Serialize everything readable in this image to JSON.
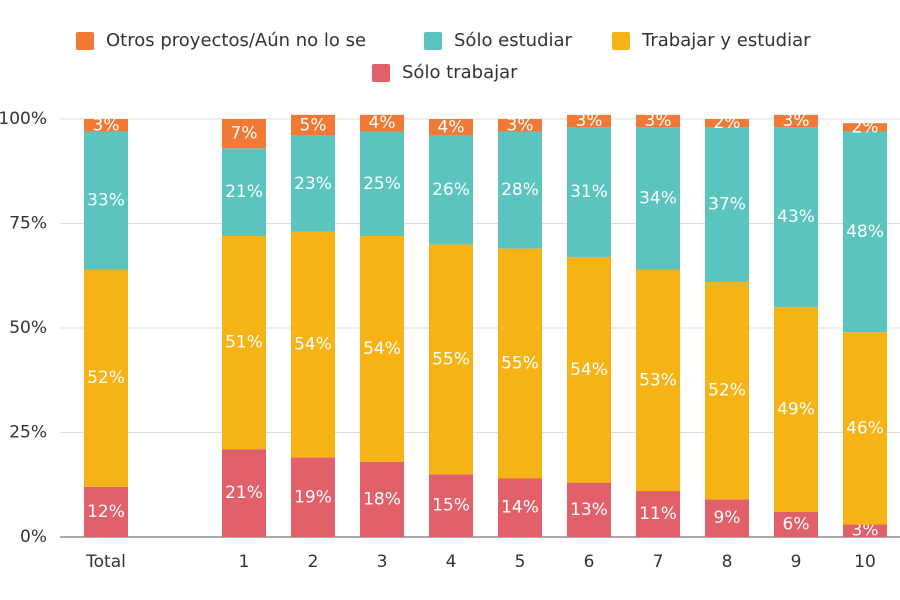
{
  "chart_data": {
    "type": "stacked_bar",
    "categories": [
      "Total",
      null,
      "1",
      "2",
      "3",
      "4",
      "5",
      "6",
      "7",
      "8",
      "9",
      "10"
    ],
    "series": [
      {
        "name": "Otros proyectos/Aún no lo se",
        "color": "#f07a35",
        "values": [
          3,
          null,
          7,
          5,
          4,
          4,
          3,
          3,
          3,
          2,
          3,
          2
        ],
        "value_labels": [
          "3%",
          null,
          "7%",
          "5%",
          "4%",
          "4%",
          "3%",
          "3%",
          "3%",
          "2%",
          "3%",
          "2%"
        ]
      },
      {
        "name": "Sólo estudiar",
        "color": "#5bc4bf",
        "values": [
          33,
          null,
          21,
          23,
          25,
          26,
          28,
          31,
          34,
          37,
          43,
          48
        ],
        "value_labels": [
          "33%",
          null,
          "21%",
          "23%",
          "25%",
          "26%",
          "28%",
          "31%",
          "34%",
          "37%",
          "43%",
          "48%"
        ]
      },
      {
        "name": "Trabajar y estudiar",
        "color": "#f5b316",
        "values": [
          52,
          null,
          51,
          54,
          54,
          55,
          55,
          54,
          53,
          52,
          49,
          46
        ],
        "value_labels": [
          "52%",
          null,
          "51%",
          "54%",
          "54%",
          "55%",
          "55%",
          "54%",
          "53%",
          "52%",
          "49%",
          "46%"
        ]
      },
      {
        "name": "Sólo trabajar",
        "color": "#e2606a",
        "values": [
          12,
          null,
          21,
          19,
          18,
          15,
          14,
          13,
          11,
          9,
          6,
          3
        ],
        "value_labels": [
          "12%",
          null,
          "21%",
          "19%",
          "18%",
          "15%",
          "14%",
          "13%",
          "11%",
          "9%",
          "6%",
          "3%"
        ]
      }
    ],
    "ylim": [
      0,
      100
    ],
    "yticks": [
      {
        "value": 0,
        "label": "0%"
      },
      {
        "value": 25,
        "label": "25%"
      },
      {
        "value": 50,
        "label": "50%"
      },
      {
        "value": 75,
        "label": "75%"
      },
      {
        "value": 100,
        "label": "100%"
      }
    ],
    "grid": true
  }
}
